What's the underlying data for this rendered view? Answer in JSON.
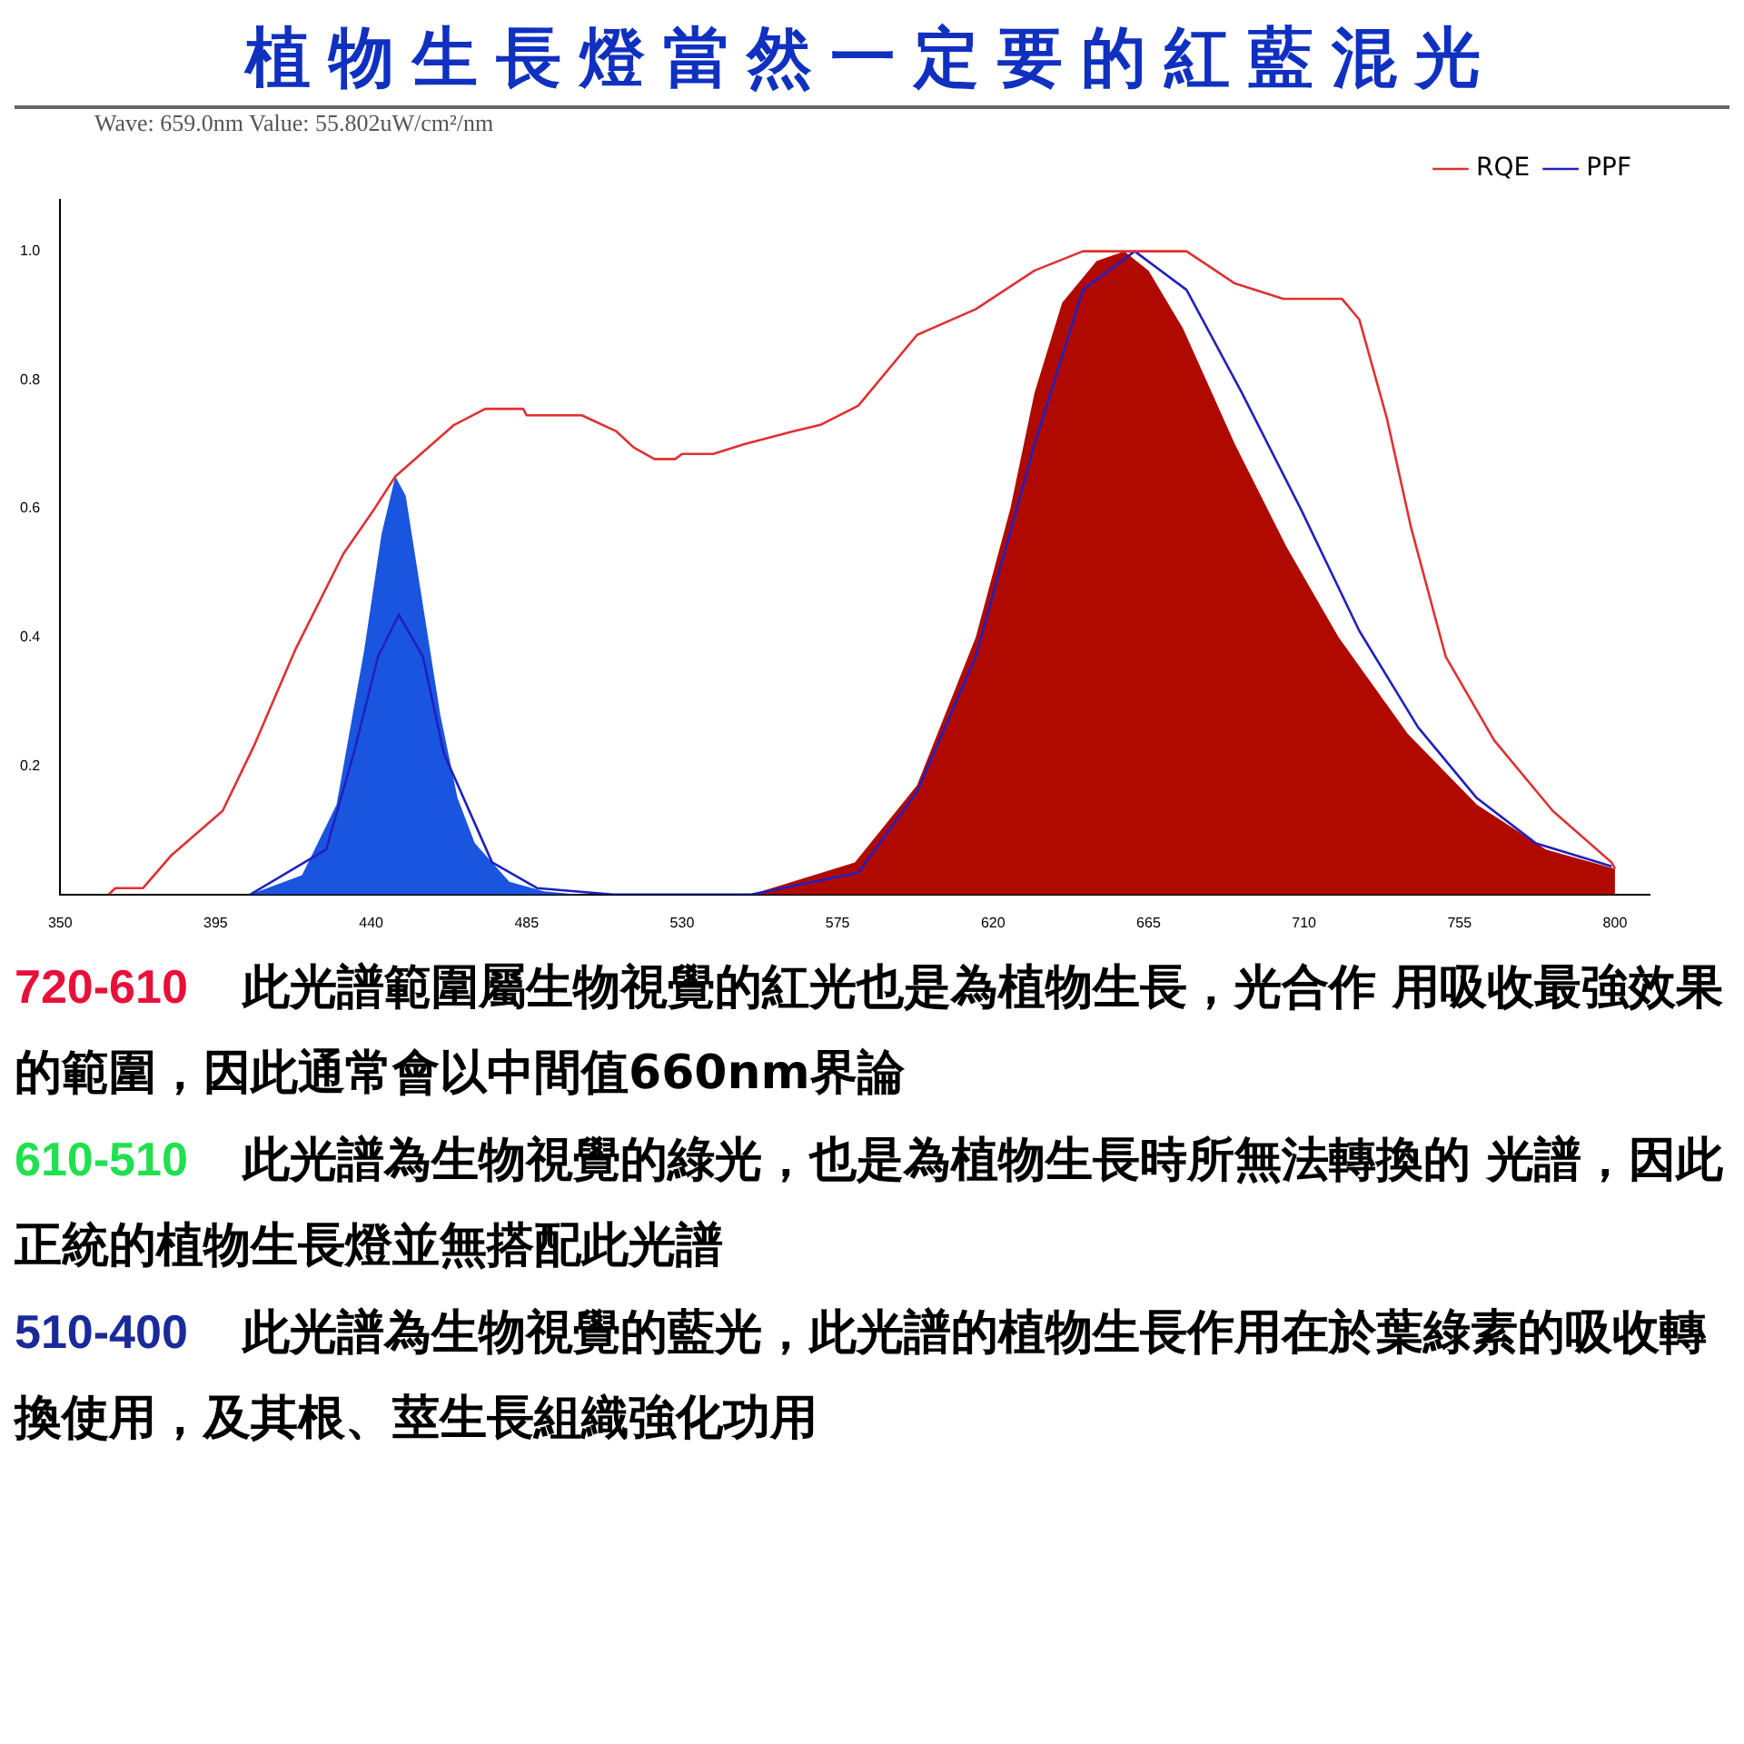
{
  "chart_data": {
    "type": "line",
    "title": "植物生長燈當然一定要的紅藍混光",
    "xlim": [
      350,
      810
    ],
    "xticks": [
      350,
      395,
      440,
      485,
      530,
      575,
      620,
      665,
      710,
      755,
      800
    ],
    "ylim": [
      0,
      1.08
    ],
    "yticks": [
      0.2,
      0.4,
      0.6,
      0.8,
      {
        "value": 1,
        "label": "1.0"
      }
    ],
    "grid": false,
    "legend": "top right",
    "marker": "none",
    "series": [
      {
        "type": "area",
        "color": "#1a55e0",
        "x": [
          405,
          420,
          430,
          438,
          443,
          447,
          450,
          455,
          460,
          465,
          470,
          480,
          490,
          500
        ],
        "values": [
          0,
          0.03,
          0.14,
          0.38,
          0.56,
          0.65,
          0.62,
          0.45,
          0.28,
          0.15,
          0.08,
          0.02,
          0.005,
          0
        ]
      },
      {
        "type": "area",
        "color": "#b00a00",
        "x": [
          550,
          580,
          598,
          615,
          625,
          632,
          640,
          650,
          658,
          665,
          675,
          690,
          705,
          720,
          740,
          760,
          780,
          800
        ],
        "values": [
          0,
          0.05,
          0.17,
          0.4,
          0.6,
          0.78,
          0.92,
          0.985,
          1.0,
          0.97,
          0.88,
          0.7,
          0.54,
          0.4,
          0.25,
          0.14,
          0.07,
          0.04
        ]
      },
      {
        "name": "RQE",
        "type": "line",
        "color": "#e03030",
        "x": [
          364,
          366,
          374,
          382,
          397,
          406,
          418,
          432,
          441,
          447,
          464,
          473,
          484,
          485,
          501,
          511,
          516,
          522,
          528,
          530,
          539,
          548,
          562,
          570,
          581,
          598,
          615,
          632,
          646,
          676,
          690,
          704,
          721,
          726,
          734,
          741,
          751,
          765,
          782,
          799,
          800
        ],
        "values": [
          0,
          0.01,
          0.01,
          0.06,
          0.13,
          0.23,
          0.38,
          0.53,
          0.6,
          0.65,
          0.73,
          0.755,
          0.755,
          0.745,
          0.745,
          0.72,
          0.695,
          0.677,
          0.677,
          0.685,
          0.685,
          0.7,
          0.72,
          0.73,
          0.76,
          0.87,
          0.91,
          0.97,
          1.0,
          1.0,
          0.95,
          0.926,
          0.926,
          0.894,
          0.74,
          0.57,
          0.37,
          0.24,
          0.13,
          0.05,
          0.04
        ]
      },
      {
        "name": "PPF",
        "type": "line",
        "color": "#2020c0",
        "x": [
          405,
          427,
          435,
          442,
          448,
          455,
          461,
          475,
          488,
          510,
          550,
          581,
          598,
          615,
          632,
          646,
          661,
          676,
          692,
          709,
          726,
          743,
          760,
          777,
          799
        ],
        "values": [
          0,
          0.07,
          0.22,
          0.37,
          0.435,
          0.37,
          0.22,
          0.05,
          0.01,
          0,
          0,
          0.034,
          0.16,
          0.37,
          0.7,
          0.94,
          1.0,
          0.94,
          0.78,
          0.6,
          0.41,
          0.26,
          0.15,
          0.08,
          0.044
        ]
      }
    ],
    "annotations": [
      "Wave: 659.0nm Value: 55.802uW/cm²/nm",
      "720-610",
      "此光譜範圍屬生物視覺的紅光也是為植物生長，光合作 用吸收最強效果的範圍，因此通常會以中間值660nm界論",
      "610-510",
      "此光譜為生物視覺的綠光，也是為植物生長時所無法轉換的 光譜，因此正統的植物生長燈並無搭配此光譜",
      "510-400",
      "此光譜為生物視覺的藍光，此光譜的植物生長作用在於葉綠素的吸收轉換使用，及其根、莖生長組織強化功用"
    ]
  }
}
